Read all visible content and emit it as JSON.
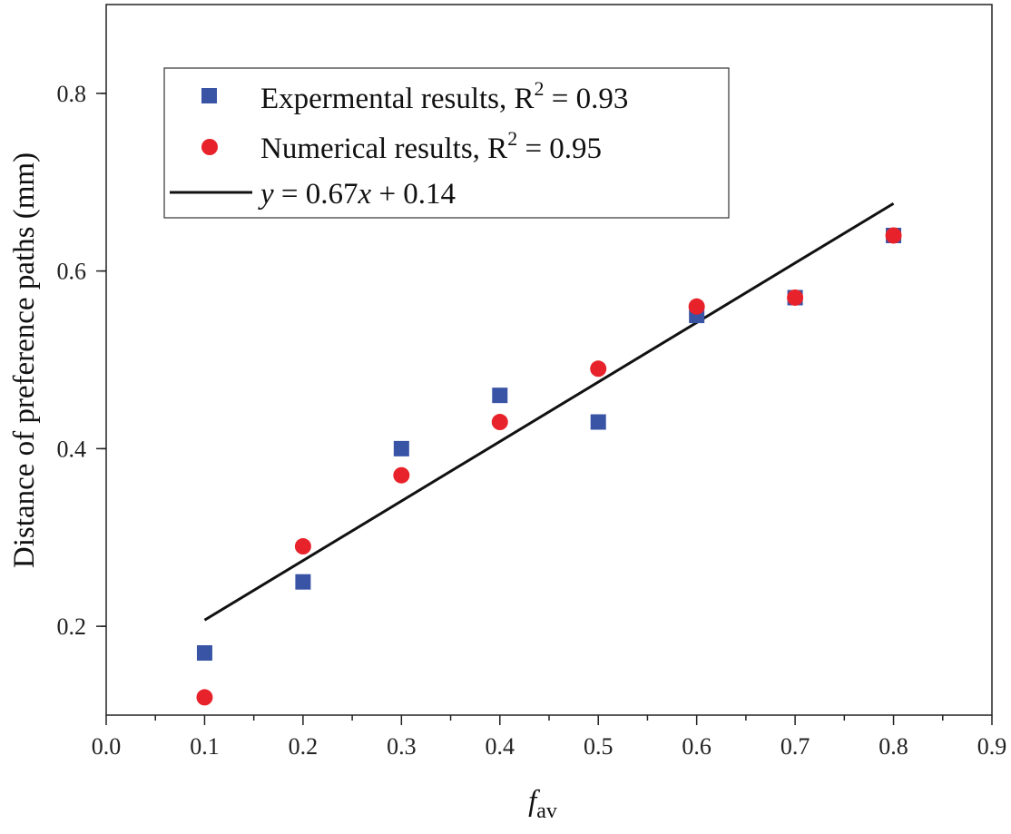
{
  "chart_data": {
    "type": "scatter",
    "xlabel": {
      "main": "f",
      "sub": "av"
    },
    "ylabel": "Distance of preference paths (mm)",
    "xlim": [
      0.0,
      0.9
    ],
    "ylim": [
      0.1,
      0.9
    ],
    "xticks": [
      "0.0",
      "0.1",
      "0.2",
      "0.3",
      "0.4",
      "0.5",
      "0.6",
      "0.7",
      "0.8",
      "0.9"
    ],
    "yticks": [
      "0.2",
      "0.4",
      "0.6",
      "0.8"
    ],
    "x_minor_step": 0.05,
    "y_minor_step": 0.1,
    "series": [
      {
        "name": "Expermental results,  R² = 0.93",
        "label_prefix": "Expermental results,  R",
        "label_sup": "2",
        "label_suffix": " = 0.93",
        "marker": "square",
        "color": "#3954a5",
        "x": [
          0.1,
          0.2,
          0.3,
          0.4,
          0.5,
          0.6,
          0.7,
          0.8
        ],
        "y": [
          0.17,
          0.25,
          0.4,
          0.46,
          0.43,
          0.55,
          0.57,
          0.64
        ]
      },
      {
        "name": "Numerical results, R² = 0.95",
        "label_prefix": "Numerical results, R",
        "label_sup": "2",
        "label_suffix": " = 0.95",
        "marker": "circle",
        "color": "#e8222b",
        "x": [
          0.1,
          0.2,
          0.3,
          0.4,
          0.5,
          0.6,
          0.7,
          0.8
        ],
        "y": [
          0.12,
          0.29,
          0.37,
          0.43,
          0.49,
          0.56,
          0.57,
          0.64
        ]
      }
    ],
    "fit_line": {
      "name": "y = 0.67x + 0.14",
      "label_y": "y",
      "label_mid": " = 0.67",
      "label_x": "x",
      "label_end": " + 0.14",
      "slope": 0.67,
      "intercept": 0.14,
      "x_range": [
        0.1,
        0.8
      ],
      "color": "#111111"
    },
    "legend_position": "top-left"
  }
}
